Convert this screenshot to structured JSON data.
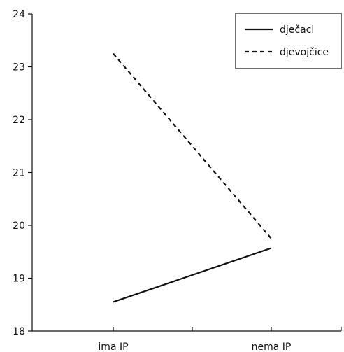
{
  "chart_data": {
    "type": "line",
    "title": "",
    "xlabel": "",
    "ylabel": "",
    "categories": [
      "ima IP",
      "nema IP"
    ],
    "ylim": [
      18,
      24
    ],
    "yticks": [
      "18",
      "19",
      "20",
      "21",
      "22",
      "23",
      "24"
    ],
    "legend_position": "top-right",
    "grid": false,
    "series": [
      {
        "name": "dječaci",
        "values": [
          18.55,
          19.57
        ],
        "style": "solid",
        "color": "#111111"
      },
      {
        "name": "djevojčice",
        "values": [
          23.25,
          19.75
        ],
        "style": "dashed",
        "color": "#111111"
      }
    ]
  }
}
